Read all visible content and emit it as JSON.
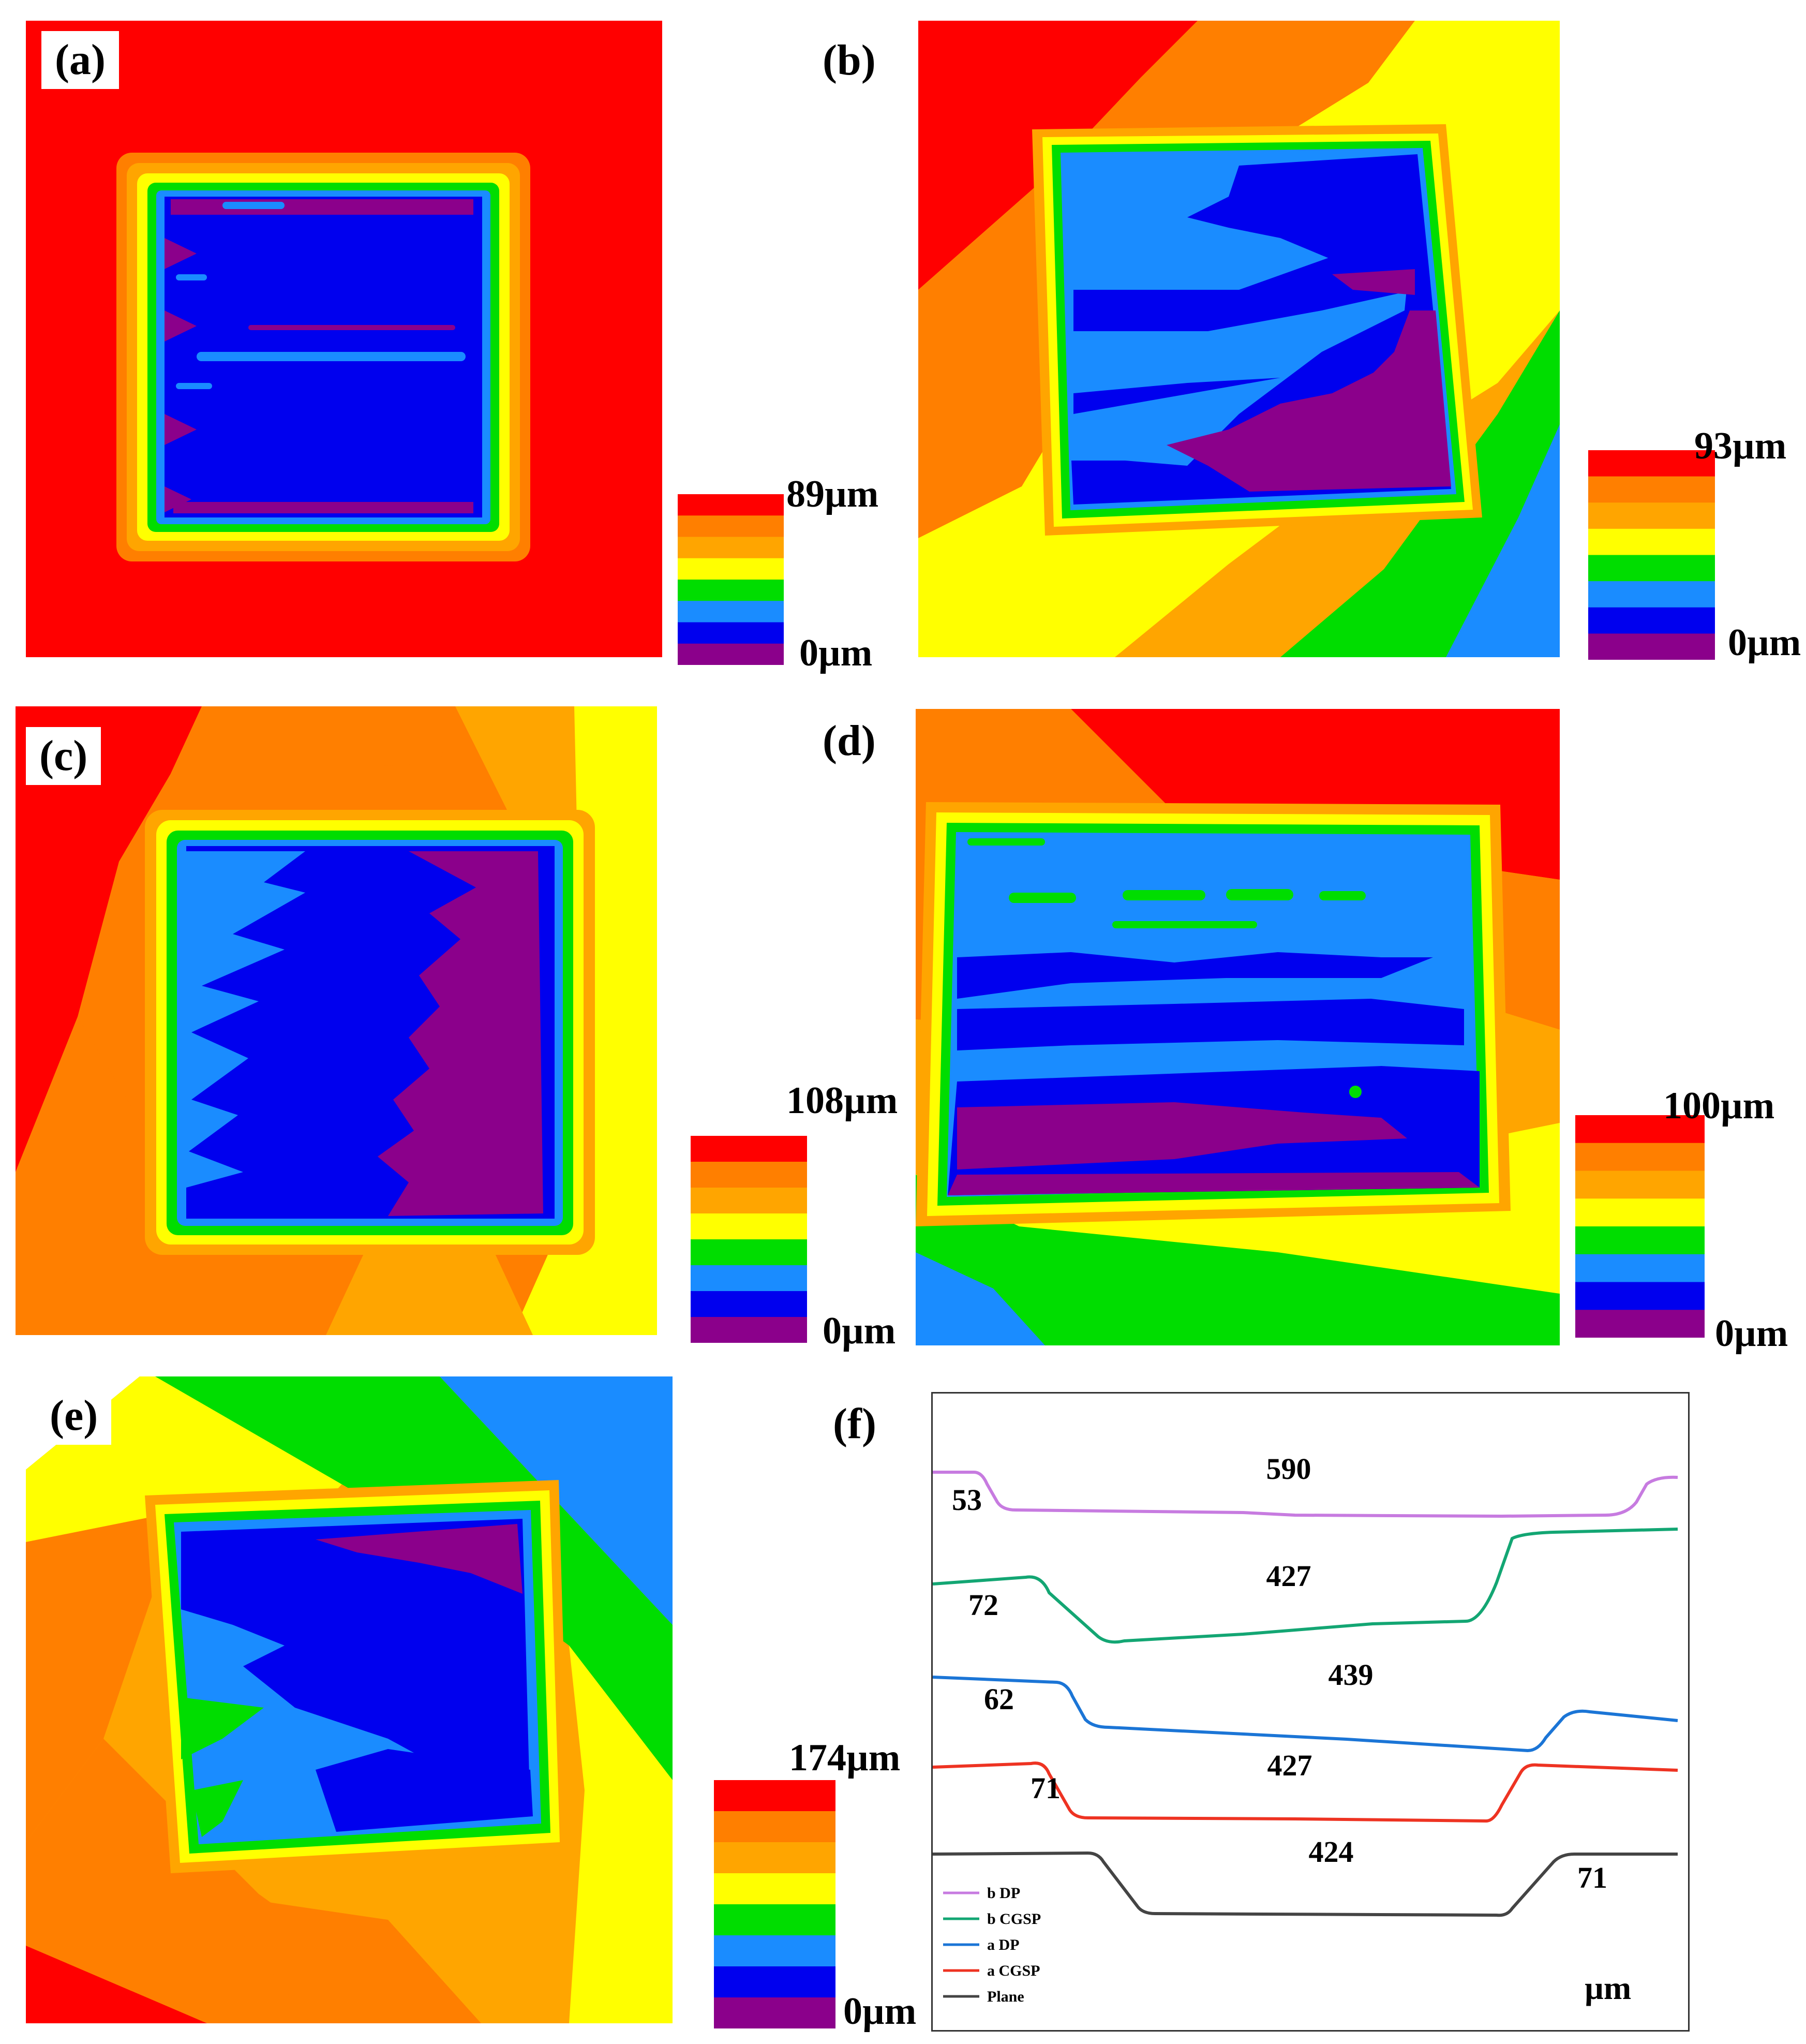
{
  "figure": {
    "panels": [
      {
        "id": "a",
        "label": "(a)",
        "max_label": "89µm",
        "min_label": "0µm"
      },
      {
        "id": "b",
        "label": "(b)",
        "max_label": "93µm",
        "min_label": "0µm"
      },
      {
        "id": "c",
        "label": "(c)",
        "max_label": "108µm",
        "min_label": "0µm"
      },
      {
        "id": "d",
        "label": "(d)",
        "max_label": "100µm",
        "min_label": "0µm"
      },
      {
        "id": "e",
        "label": "(e)",
        "max_label": "174µm",
        "min_label": "0µm"
      }
    ],
    "colorscale": [
      "#ff0000",
      "#ff7f00",
      "#ffa500",
      "#ffff00",
      "#00dd00",
      "#1a8cff",
      "#0000ee",
      "#8b008b"
    ],
    "profile": {
      "label": "(f)",
      "unit": "µm",
      "legend": [
        "b DP",
        "b CGSP",
        "a DP",
        "a CGSP",
        "Plane"
      ],
      "series_colors": [
        "#c77be0",
        "#13a673",
        "#1b75d6",
        "#ee3322",
        "#444444"
      ],
      "annotations": {
        "b_dp": {
          "width": "590",
          "depth": "53"
        },
        "b_cgsp": {
          "width": "427",
          "depth": "72"
        },
        "a_dp": {
          "width": "439",
          "depth": "62"
        },
        "a_cgsp": {
          "width": "427",
          "depth": "71"
        },
        "plane": {
          "width": "424",
          "depth": "71"
        }
      }
    }
  }
}
